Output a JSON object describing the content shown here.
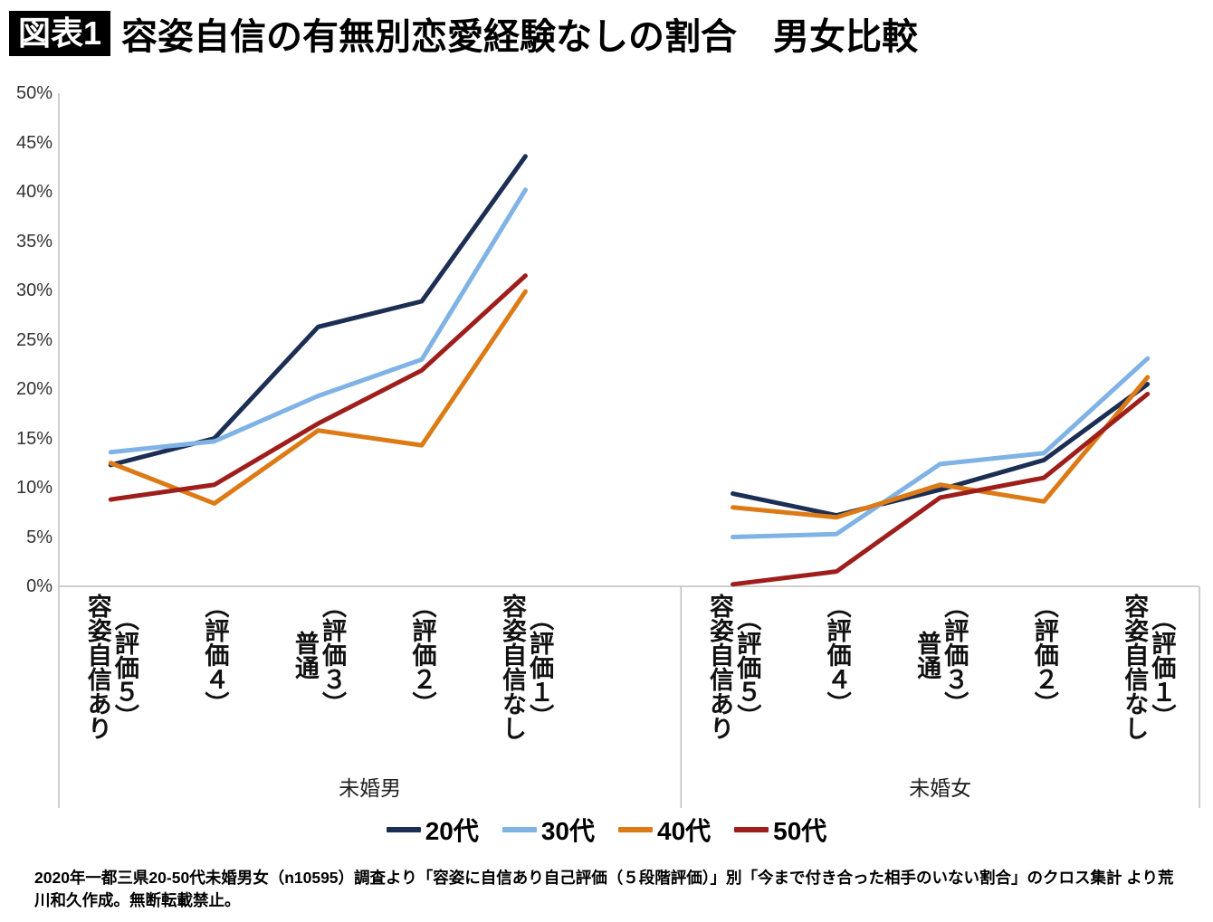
{
  "header": {
    "badge": "図表1",
    "title": "容姿自信の有無別恋愛経験なしの割合　男女比較"
  },
  "chart_data": {
    "type": "line",
    "title": "容姿自信の有無別恋愛経験なしの割合　男女比較",
    "legend_position": "bottom",
    "grid": false,
    "axis_color": "#bfbfbf",
    "y_axis": {
      "min": 0,
      "max": 50,
      "step": 5,
      "unit": "%",
      "tick_labels": [
        "0%",
        "5%",
        "10%",
        "15%",
        "20%",
        "25%",
        "30%",
        "35%",
        "40%",
        "45%",
        "50%"
      ]
    },
    "groups": [
      {
        "label": "未婚男",
        "categories": [
          [
            "容姿自信あり",
            "（評価５）"
          ],
          [
            "（評価４）"
          ],
          [
            "普通",
            "（評価３）"
          ],
          [
            "（評価２）"
          ],
          [
            "容姿自信なし",
            "（評価１）"
          ]
        ]
      },
      {
        "label": "未婚女",
        "categories": [
          [
            "容姿自信あり",
            "（評価５）"
          ],
          [
            "（評価４）"
          ],
          [
            "普通",
            "（評価３）"
          ],
          [
            "（評価２）"
          ],
          [
            "容姿自信なし",
            "（評価１）"
          ]
        ]
      }
    ],
    "series": [
      {
        "name": "20代",
        "color": "#1c2e54",
        "men": [
          12.3,
          15.0,
          26.3,
          28.9,
          43.6
        ],
        "women": [
          9.4,
          7.2,
          9.8,
          12.8,
          20.5
        ]
      },
      {
        "name": "30代",
        "color": "#7fb2e5",
        "men": [
          13.6,
          14.7,
          19.3,
          23.0,
          40.2
        ],
        "women": [
          5.0,
          5.3,
          12.4,
          13.5,
          23.1
        ]
      },
      {
        "name": "40代",
        "color": "#dc7a16",
        "men": [
          12.5,
          8.4,
          15.8,
          14.3,
          29.9
        ],
        "women": [
          8.0,
          7.0,
          10.3,
          8.6,
          21.2
        ]
      },
      {
        "name": "50代",
        "color": "#9e1e1b",
        "men": [
          8.8,
          10.3,
          16.5,
          21.9,
          31.5
        ],
        "women": [
          0.2,
          1.5,
          9.0,
          11.0,
          19.5
        ]
      }
    ]
  },
  "footer": {
    "source": "2020年一都三県20-50代未婚男女（n10595）調査より「容姿に自信あり自己評価（５段階評価）」別「今まで付き合った相手のいない割合」のクロス集計 より荒川和久作成。無断転載禁止。"
  }
}
